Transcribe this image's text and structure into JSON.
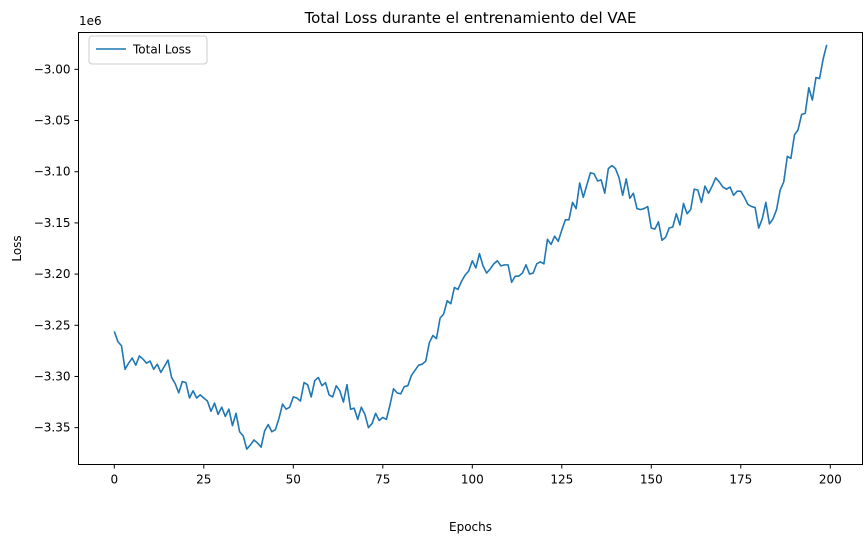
{
  "chart_data": {
    "type": "line",
    "title": "Total Loss durante el entrenamiento del VAE",
    "xlabel": "Epochs",
    "ylabel": "Loss",
    "y_offset_label": "1e6",
    "xlim": [
      -10,
      209
    ],
    "ylim": [
      -3.386,
      -2.964
    ],
    "x_ticks": [
      0,
      25,
      50,
      75,
      100,
      125,
      150,
      175,
      200
    ],
    "x_tick_labels": [
      "0",
      "25",
      "50",
      "75",
      "100",
      "125",
      "150",
      "175",
      "200"
    ],
    "y_ticks": [
      -3.35,
      -3.3,
      -3.25,
      -3.2,
      -3.15,
      -3.1,
      -3.05,
      -3.0
    ],
    "y_tick_labels": [
      "−3.35",
      "−3.30",
      "−3.25",
      "−3.20",
      "−3.15",
      "−3.10",
      "−3.05",
      "−3.00"
    ],
    "grid": false,
    "legend_position": "top-left",
    "series": [
      {
        "name": "Total Loss",
        "color": "#1f77b4",
        "keypoints": [
          [
            0,
            -3.256
          ],
          [
            1,
            -3.266
          ],
          [
            2,
            -3.27
          ],
          [
            3,
            -3.293
          ],
          [
            4,
            -3.287
          ],
          [
            5,
            -3.282
          ],
          [
            6,
            -3.289
          ],
          [
            7,
            -3.28
          ],
          [
            8,
            -3.283
          ],
          [
            9,
            -3.287
          ],
          [
            10,
            -3.285
          ],
          [
            11,
            -3.293
          ],
          [
            12,
            -3.288
          ],
          [
            13,
            -3.296
          ],
          [
            14,
            -3.29
          ],
          [
            15,
            -3.284
          ],
          [
            16,
            -3.301
          ],
          [
            17,
            -3.307
          ],
          [
            18,
            -3.316
          ],
          [
            19,
            -3.305
          ],
          [
            20,
            -3.306
          ],
          [
            21,
            -3.321
          ],
          [
            22,
            -3.314
          ],
          [
            23,
            -3.321
          ],
          [
            24,
            -3.318
          ],
          [
            25,
            -3.321
          ],
          [
            26,
            -3.324
          ],
          [
            27,
            -3.334
          ],
          [
            28,
            -3.326
          ],
          [
            29,
            -3.337
          ],
          [
            30,
            -3.33
          ],
          [
            31,
            -3.339
          ],
          [
            32,
            -3.332
          ],
          [
            33,
            -3.348
          ],
          [
            34,
            -3.336
          ],
          [
            35,
            -3.354
          ],
          [
            36,
            -3.358
          ],
          [
            37,
            -3.371
          ],
          [
            38,
            -3.367
          ],
          [
            39,
            -3.362
          ],
          [
            40,
            -3.365
          ],
          [
            41,
            -3.369
          ],
          [
            42,
            -3.353
          ],
          [
            43,
            -3.347
          ],
          [
            44,
            -3.354
          ],
          [
            45,
            -3.352
          ],
          [
            46,
            -3.341
          ],
          [
            47,
            -3.327
          ],
          [
            48,
            -3.332
          ],
          [
            49,
            -3.33
          ],
          [
            50,
            -3.32
          ],
          [
            51,
            -3.321
          ],
          [
            52,
            -3.324
          ],
          [
            53,
            -3.306
          ],
          [
            54,
            -3.308
          ],
          [
            55,
            -3.32
          ],
          [
            56,
            -3.304
          ],
          [
            57,
            -3.301
          ],
          [
            58,
            -3.309
          ],
          [
            59,
            -3.306
          ],
          [
            60,
            -3.318
          ],
          [
            61,
            -3.32
          ],
          [
            62,
            -3.309
          ],
          [
            63,
            -3.314
          ],
          [
            64,
            -3.325
          ],
          [
            65,
            -3.308
          ],
          [
            66,
            -3.332
          ],
          [
            67,
            -3.331
          ],
          [
            68,
            -3.342
          ],
          [
            69,
            -3.33
          ],
          [
            70,
            -3.337
          ],
          [
            71,
            -3.35
          ],
          [
            72,
            -3.346
          ],
          [
            73,
            -3.336
          ],
          [
            74,
            -3.343
          ],
          [
            75,
            -3.34
          ],
          [
            76,
            -3.342
          ],
          [
            77,
            -3.328
          ],
          [
            78,
            -3.312
          ],
          [
            79,
            -3.316
          ],
          [
            80,
            -3.317
          ],
          [
            81,
            -3.31
          ],
          [
            82,
            -3.309
          ],
          [
            83,
            -3.299
          ],
          [
            84,
            -3.294
          ],
          [
            85,
            -3.289
          ],
          [
            86,
            -3.288
          ],
          [
            87,
            -3.285
          ],
          [
            88,
            -3.267
          ],
          [
            89,
            -3.26
          ],
          [
            90,
            -3.263
          ],
          [
            91,
            -3.243
          ],
          [
            92,
            -3.239
          ],
          [
            93,
            -3.226
          ],
          [
            94,
            -3.229
          ],
          [
            95,
            -3.213
          ],
          [
            96,
            -3.215
          ],
          [
            97,
            -3.207
          ],
          [
            98,
            -3.201
          ],
          [
            99,
            -3.197
          ],
          [
            100,
            -3.187
          ],
          [
            101,
            -3.194
          ],
          [
            102,
            -3.18
          ],
          [
            103,
            -3.192
          ],
          [
            104,
            -3.199
          ],
          [
            105,
            -3.195
          ],
          [
            106,
            -3.19
          ],
          [
            107,
            -3.187
          ],
          [
            108,
            -3.192
          ],
          [
            109,
            -3.191
          ],
          [
            110,
            -3.191
          ],
          [
            111,
            -3.208
          ],
          [
            112,
            -3.202
          ],
          [
            113,
            -3.202
          ],
          [
            114,
            -3.199
          ],
          [
            115,
            -3.191
          ],
          [
            116,
            -3.2
          ],
          [
            117,
            -3.199
          ],
          [
            118,
            -3.19
          ],
          [
            119,
            -3.188
          ],
          [
            120,
            -3.19
          ],
          [
            121,
            -3.166
          ],
          [
            122,
            -3.171
          ],
          [
            123,
            -3.163
          ],
          [
            124,
            -3.168
          ],
          [
            125,
            -3.157
          ],
          [
            126,
            -3.147
          ],
          [
            127,
            -3.147
          ],
          [
            128,
            -3.13
          ],
          [
            129,
            -3.136
          ],
          [
            130,
            -3.111
          ],
          [
            131,
            -3.125
          ],
          [
            132,
            -3.113
          ],
          [
            133,
            -3.101
          ],
          [
            134,
            -3.102
          ],
          [
            135,
            -3.109
          ],
          [
            136,
            -3.108
          ],
          [
            137,
            -3.121
          ],
          [
            138,
            -3.097
          ],
          [
            139,
            -3.094
          ],
          [
            140,
            -3.097
          ],
          [
            141,
            -3.106
          ],
          [
            142,
            -3.123
          ],
          [
            143,
            -3.107
          ],
          [
            144,
            -3.126
          ],
          [
            145,
            -3.121
          ],
          [
            146,
            -3.136
          ],
          [
            147,
            -3.137
          ],
          [
            148,
            -3.136
          ],
          [
            149,
            -3.134
          ],
          [
            150,
            -3.155
          ],
          [
            151,
            -3.156
          ],
          [
            152,
            -3.149
          ],
          [
            153,
            -3.167
          ],
          [
            154,
            -3.164
          ],
          [
            155,
            -3.155
          ],
          [
            156,
            -3.154
          ],
          [
            157,
            -3.141
          ],
          [
            158,
            -3.152
          ],
          [
            159,
            -3.131
          ],
          [
            160,
            -3.141
          ],
          [
            161,
            -3.137
          ],
          [
            162,
            -3.117
          ],
          [
            163,
            -3.118
          ],
          [
            164,
            -3.13
          ],
          [
            165,
            -3.114
          ],
          [
            166,
            -3.121
          ],
          [
            167,
            -3.114
          ],
          [
            168,
            -3.106
          ],
          [
            169,
            -3.11
          ],
          [
            170,
            -3.115
          ],
          [
            171,
            -3.117
          ],
          [
            172,
            -3.115
          ],
          [
            173,
            -3.123
          ],
          [
            174,
            -3.119
          ],
          [
            175,
            -3.119
          ],
          [
            176,
            -3.125
          ],
          [
            177,
            -3.132
          ],
          [
            178,
            -3.134
          ],
          [
            179,
            -3.135
          ],
          [
            180,
            -3.155
          ],
          [
            181,
            -3.146
          ],
          [
            182,
            -3.13
          ],
          [
            183,
            -3.151
          ],
          [
            184,
            -3.146
          ],
          [
            185,
            -3.137
          ],
          [
            186,
            -3.118
          ],
          [
            187,
            -3.11
          ],
          [
            188,
            -3.085
          ],
          [
            189,
            -3.087
          ],
          [
            190,
            -3.064
          ],
          [
            191,
            -3.059
          ],
          [
            192,
            -3.044
          ],
          [
            193,
            -3.043
          ],
          [
            194,
            -3.018
          ],
          [
            195,
            -3.03
          ],
          [
            196,
            -3.008
          ],
          [
            197,
            -3.009
          ],
          [
            198,
            -2.99
          ],
          [
            199,
            -2.976
          ]
        ]
      }
    ]
  }
}
